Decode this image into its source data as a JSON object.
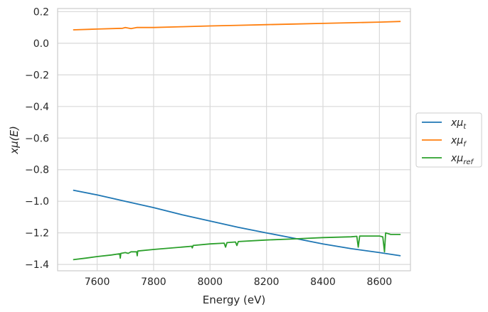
{
  "chart_data": {
    "type": "line",
    "xlabel": "Energy (eV)",
    "ylabel": "xμ(E)",
    "xlim": [
      7460,
      8710
    ],
    "ylim": [
      -1.44,
      0.22
    ],
    "xticks": [
      7600,
      7800,
      8000,
      8200,
      8400,
      8600
    ],
    "xtick_labels": [
      "7600",
      "7800",
      "8000",
      "8200",
      "8400",
      "8600"
    ],
    "yticks": [
      0.2,
      0.0,
      -0.2,
      -0.4,
      -0.6,
      -0.8,
      -1.0,
      -1.2,
      -1.4
    ],
    "ytick_labels": [
      "0.2",
      "0.0",
      "−0.2",
      "−0.4",
      "−0.6",
      "−0.8",
      "−1.0",
      "−1.2",
      "−1.4"
    ],
    "grid": true,
    "legend_position": "outside-right",
    "series": [
      {
        "name": "xμ_t",
        "legend_main": "xμ",
        "legend_sub": "t",
        "color": "#1f77b4",
        "points": [
          [
            7515,
            -0.93
          ],
          [
            7600,
            -0.96
          ],
          [
            7700,
            -1.0
          ],
          [
            7800,
            -1.04
          ],
          [
            7900,
            -1.085
          ],
          [
            8000,
            -1.125
          ],
          [
            8100,
            -1.165
          ],
          [
            8200,
            -1.2
          ],
          [
            8300,
            -1.235
          ],
          [
            8400,
            -1.27
          ],
          [
            8500,
            -1.3
          ],
          [
            8600,
            -1.325
          ],
          [
            8675,
            -1.345
          ]
        ]
      },
      {
        "name": "xμ_f",
        "legend_main": "xμ",
        "legend_sub": "f",
        "color": "#ff7f0e",
        "points": [
          [
            7515,
            0.085
          ],
          [
            7600,
            0.09
          ],
          [
            7690,
            0.095
          ],
          [
            7700,
            0.1
          ],
          [
            7720,
            0.093
          ],
          [
            7740,
            0.1
          ],
          [
            7800,
            0.1
          ],
          [
            7900,
            0.105
          ],
          [
            8000,
            0.11
          ],
          [
            8100,
            0.114
          ],
          [
            8200,
            0.118
          ],
          [
            8300,
            0.122
          ],
          [
            8400,
            0.126
          ],
          [
            8500,
            0.13
          ],
          [
            8600,
            0.134
          ],
          [
            8675,
            0.138
          ]
        ]
      },
      {
        "name": "xμ_ref",
        "legend_main": "xμ",
        "legend_sub": "ref",
        "color": "#2ca02c",
        "points": [
          [
            7515,
            -1.37
          ],
          [
            7560,
            -1.36
          ],
          [
            7600,
            -1.35
          ],
          [
            7650,
            -1.34
          ],
          [
            7680,
            -1.332
          ],
          [
            7682,
            -1.36
          ],
          [
            7684,
            -1.33
          ],
          [
            7700,
            -1.325
          ],
          [
            7710,
            -1.33
          ],
          [
            7720,
            -1.32
          ],
          [
            7740,
            -1.32
          ],
          [
            7742,
            -1.345
          ],
          [
            7744,
            -1.315
          ],
          [
            7800,
            -1.305
          ],
          [
            7900,
            -1.29
          ],
          [
            7935,
            -1.285
          ],
          [
            7937,
            -1.295
          ],
          [
            7940,
            -1.28
          ],
          [
            8000,
            -1.27
          ],
          [
            8050,
            -1.265
          ],
          [
            8055,
            -1.29
          ],
          [
            8060,
            -1.262
          ],
          [
            8090,
            -1.258
          ],
          [
            8095,
            -1.28
          ],
          [
            8100,
            -1.255
          ],
          [
            8200,
            -1.245
          ],
          [
            8300,
            -1.238
          ],
          [
            8400,
            -1.23
          ],
          [
            8500,
            -1.225
          ],
          [
            8520,
            -1.222
          ],
          [
            8525,
            -1.29
          ],
          [
            8530,
            -1.22
          ],
          [
            8600,
            -1.22
          ],
          [
            8612,
            -1.225
          ],
          [
            8618,
            -1.32
          ],
          [
            8622,
            -1.2
          ],
          [
            8640,
            -1.21
          ],
          [
            8675,
            -1.21
          ]
        ]
      }
    ]
  }
}
